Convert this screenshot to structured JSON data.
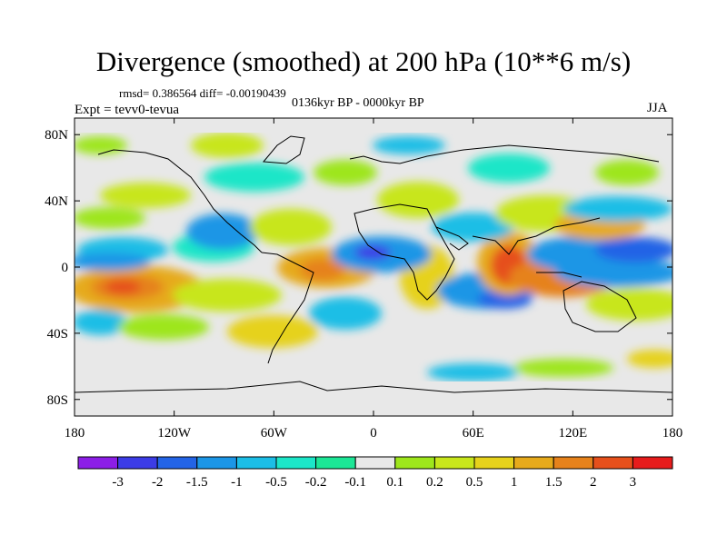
{
  "title": "Divergence (smoothed) at 200 hPa (10**6 m/s)",
  "stats_text": "rmsd= 0.386564  diff= -0.00190439",
  "period_text": "0136kyr BP - 0000kyr BP",
  "expt_text": "Expt = tevv0-tevua",
  "season_text": "JJA",
  "colors": {
    "background_field": "#e8e8e8",
    "coastline": "#000000",
    "levels": [
      "#8c1ee6",
      "#3c3ce6",
      "#2364e6",
      "#1c96e6",
      "#1cbee6",
      "#1ce6c8",
      "#1ce696",
      "#e8e8e8",
      "#9ee61c",
      "#c8e61c",
      "#e6d21c",
      "#e6aa1c",
      "#e6821c",
      "#e6501c",
      "#e61c1c"
    ]
  },
  "map": {
    "projection": "cylindrical equidistant",
    "lon_range": [
      -180,
      180
    ],
    "lat_range": [
      -90,
      90
    ],
    "lon_ticks": [
      "180",
      "120W",
      "60W",
      "0",
      "60E",
      "120E",
      "180"
    ],
    "lat_ticks": [
      "80N",
      "40N",
      "0",
      "40S",
      "80S"
    ]
  },
  "colorbar": {
    "labels": [
      "-3",
      "-2",
      "-1.5",
      "-1",
      "-0.5",
      "-0.2",
      "-0.1",
      "0.1",
      "0.2",
      "0.5",
      "1",
      "1.5",
      "2",
      "3"
    ]
  }
}
